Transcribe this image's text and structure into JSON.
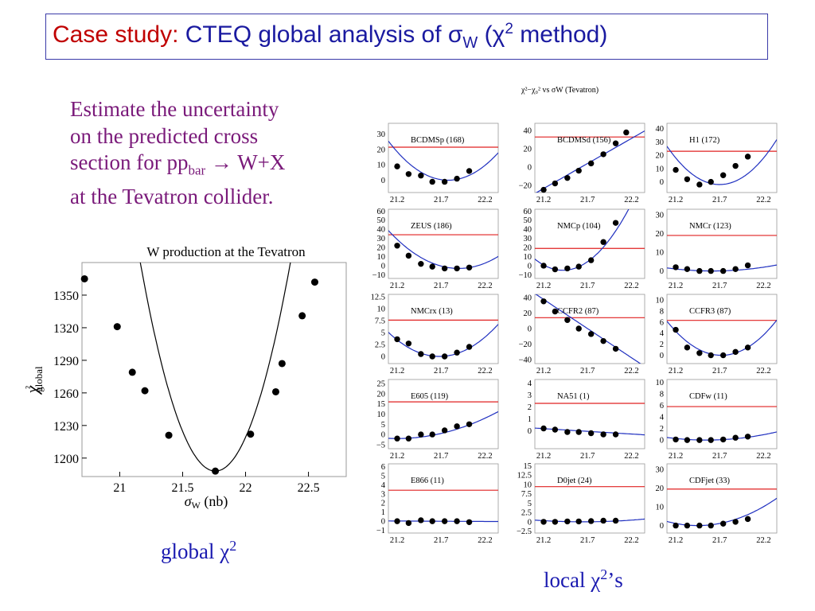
{
  "slide": {
    "title_part1": "Case study:",
    "title_part2": " CTEQ global analysis of ",
    "title_sigma": "σ",
    "title_sub": "W",
    "title_part3": " (",
    "title_chi": "χ",
    "title_sup": "2",
    "title_part4": " method)",
    "intro_line1": "Estimate the uncertainty",
    "intro_line2": "on the predicted cross",
    "intro_line3a": "section for pp",
    "intro_line3sub": "bar",
    "intro_line3b": " → W+X",
    "intro_line4": "at the Tevatron collider.",
    "caption_global": "global χ",
    "caption_global_sup": "2",
    "caption_local": "local χ",
    "caption_local_sup": "2",
    "caption_local_tail": "’s",
    "panels_title": "χ²−χ₀² vs σW (Tevatron)",
    "accent_title": "#c00000",
    "accent_text": "#7a1a7a",
    "accent_caption": "#1a1ab0"
  },
  "chart_data": [
    {
      "type": "scatter",
      "title": "W production at the Tevatron",
      "xlabel": "σW (nb)",
      "ylabel": "χ²global",
      "xlim": [
        20.7,
        22.8
      ],
      "ylim": [
        1183,
        1380
      ],
      "xticks": [
        21,
        21.5,
        22,
        22.5
      ],
      "xtick_labels": [
        "21",
        "21.5",
        "22",
        "22.5"
      ],
      "yticks": [
        1200,
        1230,
        1260,
        1290,
        1320,
        1350
      ],
      "ytick_labels": [
        "1200",
        "1230",
        "1260",
        "1290",
        "1320",
        "1350"
      ],
      "points": [
        [
          20.72,
          1365
        ],
        [
          20.98,
          1321
        ],
        [
          21.1,
          1279
        ],
        [
          21.2,
          1262
        ],
        [
          21.39,
          1221
        ],
        [
          21.76,
          1188
        ],
        [
          22.04,
          1222
        ],
        [
          22.24,
          1261
        ],
        [
          22.29,
          1287
        ],
        [
          22.45,
          1331
        ],
        [
          22.55,
          1362
        ]
      ],
      "fit_curve": {
        "type": "parabola",
        "x0": 21.76,
        "y0": 1188,
        "curvature": 540
      },
      "grid": false
    },
    {
      "type": "scatter",
      "panels": [
        {
          "label": "BCDMSp (168)",
          "ylim": [
            -8,
            37
          ],
          "yticks": [
            0,
            10,
            20,
            30
          ],
          "ytick_labels": [
            "0",
            "10",
            "20",
            "30"
          ],
          "ref_line": 21.5,
          "x0": 21.78,
          "y0": 0,
          "k": 55,
          "points": [
            [
              21.2,
              9
            ],
            [
              21.33,
              4
            ],
            [
              21.47,
              3
            ],
            [
              21.6,
              -1
            ],
            [
              21.74,
              -1
            ],
            [
              21.88,
              1
            ],
            [
              22.02,
              6
            ]
          ]
        },
        {
          "label": "BCDMSd (156)",
          "ylim": [
            -28,
            48
          ],
          "yticks": [
            -20,
            0,
            20,
            40
          ],
          "ytick_labels": [
            "−20",
            "0",
            "20",
            "40"
          ],
          "ref_line": 33,
          "linear": [
            21.72,
            5,
            55
          ],
          "points": [
            [
              21.2,
              -25
            ],
            [
              21.33,
              -18
            ],
            [
              21.47,
              -12
            ],
            [
              21.6,
              -4
            ],
            [
              21.74,
              4
            ],
            [
              21.88,
              14
            ],
            [
              22.02,
              26
            ],
            [
              22.14,
              38
            ]
          ]
        },
        {
          "label": "H1 (172)",
          "ylim": [
            -8,
            44
          ],
          "yticks": [
            0,
            10,
            20,
            30,
            40
          ],
          "ytick_labels": [
            "0",
            "10",
            "20",
            "30",
            "40"
          ],
          "ref_line": 23,
          "x0": 21.7,
          "y0": -2,
          "k": 80,
          "points": [
            [
              21.2,
              9
            ],
            [
              21.33,
              2
            ],
            [
              21.47,
              -2
            ],
            [
              21.6,
              0
            ],
            [
              21.74,
              5
            ],
            [
              21.88,
              12
            ],
            [
              22.02,
              19
            ]
          ]
        },
        {
          "label": "ZEUS (186)",
          "ylim": [
            -14,
            62
          ],
          "yticks": [
            -10,
            0,
            10,
            20,
            30,
            40,
            50,
            60
          ],
          "ytick_labels": [
            "−10",
            "0",
            "10",
            "20",
            "30",
            "40",
            "50",
            "60"
          ],
          "ref_line": 34,
          "x0": 21.9,
          "y0": -3,
          "k": 65,
          "points": [
            [
              21.2,
              22
            ],
            [
              21.33,
              11
            ],
            [
              21.47,
              2
            ],
            [
              21.6,
              -1
            ],
            [
              21.74,
              -3
            ],
            [
              21.88,
              -3
            ],
            [
              22.02,
              -2
            ]
          ]
        },
        {
          "label": "NMCp (104)",
          "ylim": [
            -14,
            62
          ],
          "yticks": [
            -10,
            0,
            10,
            20,
            30,
            40,
            50,
            60
          ],
          "ytick_labels": [
            "−10",
            "0",
            "10",
            "20",
            "30",
            "40",
            "50",
            "60"
          ],
          "ref_line": 19,
          "x0": 21.42,
          "y0": -5,
          "k": 120,
          "points": [
            [
              21.2,
              0
            ],
            [
              21.33,
              -4
            ],
            [
              21.47,
              -3
            ],
            [
              21.6,
              -1
            ],
            [
              21.74,
              6
            ],
            [
              21.88,
              26
            ],
            [
              22.02,
              47
            ]
          ]
        },
        {
          "label": "NMCr (123)",
          "ylim": [
            -4,
            33
          ],
          "yticks": [
            0,
            10,
            20,
            30
          ],
          "ytick_labels": [
            "0",
            "10",
            "20",
            "30"
          ],
          "ref_line": 19,
          "x0": 21.62,
          "y0": 0,
          "k": 6,
          "points": [
            [
              21.2,
              2
            ],
            [
              21.33,
              1
            ],
            [
              21.47,
              0
            ],
            [
              21.6,
              0
            ],
            [
              21.74,
              0
            ],
            [
              21.88,
              1
            ],
            [
              22.02,
              3
            ]
          ]
        },
        {
          "label": "NMCrx (13)",
          "ylim": [
            -1.5,
            13
          ],
          "yticks": [
            0,
            2.5,
            5,
            7.5,
            10,
            12.5
          ],
          "ytick_labels": [
            "0",
            "2.5",
            "5",
            "7.5",
            "10",
            "12.5"
          ],
          "ref_line": 7.6,
          "x0": 21.68,
          "y0": 0,
          "k": 15,
          "points": [
            [
              21.2,
              3.6
            ],
            [
              21.33,
              2.7
            ],
            [
              21.47,
              0.5
            ],
            [
              21.6,
              0
            ],
            [
              21.74,
              0
            ],
            [
              21.88,
              0.8
            ],
            [
              22.02,
              2
            ]
          ]
        },
        {
          "label": "CCFR2 (87)",
          "ylim": [
            -45,
            44
          ],
          "yticks": [
            -40,
            -20,
            0,
            20,
            40
          ],
          "ytick_labels": [
            "−40",
            "−20",
            "0",
            "20",
            "40"
          ],
          "ref_line": 14,
          "linear": [
            21.7,
            0,
            -75
          ],
          "points": [
            [
              21.2,
              35
            ],
            [
              21.33,
              22
            ],
            [
              21.47,
              11
            ],
            [
              21.6,
              0
            ],
            [
              21.74,
              -7
            ],
            [
              21.88,
              -16
            ],
            [
              22.02,
              -26
            ]
          ]
        },
        {
          "label": "CCFR3 (87)",
          "ylim": [
            -1.5,
            11
          ],
          "yticks": [
            0,
            2,
            4,
            6,
            8,
            10
          ],
          "ytick_labels": [
            "0",
            "2",
            "4",
            "6",
            "8",
            "10"
          ],
          "ref_line": 6.3,
          "x0": 21.72,
          "y0": 0,
          "k": 16,
          "points": [
            [
              21.2,
              4.6
            ],
            [
              21.33,
              1.4
            ],
            [
              21.47,
              0.4
            ],
            [
              21.6,
              0
            ],
            [
              21.74,
              0
            ],
            [
              21.88,
              0.6
            ],
            [
              22.02,
              1.4
            ]
          ]
        },
        {
          "label": "E605 (119)",
          "ylim": [
            -7,
            27
          ],
          "yticks": [
            -5,
            0,
            5,
            10,
            15,
            20,
            25
          ],
          "ytick_labels": [
            "−5",
            "0",
            "5",
            "10",
            "15",
            "20",
            "25"
          ],
          "ref_line": 16,
          "x0": 21.2,
          "y0": -2,
          "k": 10,
          "points": [
            [
              21.2,
              -2
            ],
            [
              21.33,
              -2
            ],
            [
              21.47,
              0
            ],
            [
              21.6,
              0
            ],
            [
              21.74,
              2
            ],
            [
              21.88,
              4
            ],
            [
              22.02,
              5
            ]
          ]
        },
        {
          "label": "NA51 (1)",
          "ylim": [
            -1.5,
            4.3
          ],
          "yticks": [
            0,
            1,
            2,
            3,
            4
          ],
          "ytick_labels": [
            "0",
            "1",
            "2",
            "3",
            "4"
          ],
          "ref_line": 2.3,
          "linear": [
            21.6,
            0,
            -0.45
          ],
          "points": [
            [
              21.2,
              0.2
            ],
            [
              21.33,
              0.1
            ],
            [
              21.47,
              -0.1
            ],
            [
              21.6,
              -0.1
            ],
            [
              21.74,
              -0.2
            ],
            [
              21.88,
              -0.3
            ],
            [
              22.02,
              -0.3
            ]
          ]
        },
        {
          "label": "CDFw (11)",
          "ylim": [
            -1.5,
            10.5
          ],
          "yticks": [
            0,
            2,
            4,
            6,
            8,
            10
          ],
          "ytick_labels": [
            "0",
            "2",
            "4",
            "6",
            "8",
            "10"
          ],
          "ref_line": 5.8,
          "x0": 21.55,
          "y0": 0,
          "k": 2.2,
          "points": [
            [
              21.2,
              0.1
            ],
            [
              21.33,
              0
            ],
            [
              21.47,
              0
            ],
            [
              21.6,
              0
            ],
            [
              21.74,
              0.1
            ],
            [
              21.88,
              0.4
            ],
            [
              22.02,
              0.6
            ]
          ]
        },
        {
          "label": "E866 (11)",
          "ylim": [
            -1.3,
            6.3
          ],
          "yticks": [
            -1,
            0,
            1,
            2,
            3,
            4,
            5,
            6
          ],
          "ytick_labels": [
            "−1",
            "0",
            "1",
            "2",
            "3",
            "4",
            "5",
            "6"
          ],
          "ref_line": 3.4,
          "linear": [
            21.6,
            0,
            -0.05
          ],
          "points": [
            [
              21.2,
              0
            ],
            [
              21.33,
              -0.2
            ],
            [
              21.47,
              0.1
            ],
            [
              21.6,
              0
            ],
            [
              21.74,
              0
            ],
            [
              21.88,
              0
            ],
            [
              22.02,
              -0.1
            ]
          ]
        },
        {
          "label": "D0jet (24)",
          "ylim": [
            -3,
            15.5
          ],
          "yticks": [
            -2.5,
            0,
            2.5,
            5,
            7.5,
            10,
            12.5,
            15
          ],
          "ytick_labels": [
            "−2.5",
            "0",
            "2.5",
            "5",
            "7.5",
            "10",
            "12.5",
            "15"
          ],
          "ref_line": 9.4,
          "x0": 21.65,
          "y0": 0,
          "k": 1.5,
          "points": [
            [
              21.2,
              0
            ],
            [
              21.33,
              0
            ],
            [
              21.47,
              0.1
            ],
            [
              21.6,
              0.1
            ],
            [
              21.74,
              0.2
            ],
            [
              21.88,
              0.3
            ],
            [
              22.02,
              0.3
            ]
          ]
        },
        {
          "label": "CDFjet (33)",
          "ylim": [
            -4,
            33
          ],
          "yticks": [
            0,
            10,
            20,
            30
          ],
          "ytick_labels": [
            "0",
            "10",
            "20",
            "30"
          ],
          "ref_line": 19.5,
          "x0": 21.45,
          "y0": 0,
          "k": 18,
          "points": [
            [
              21.2,
              0
            ],
            [
              21.33,
              0
            ],
            [
              21.47,
              0
            ],
            [
              21.6,
              0
            ],
            [
              21.74,
              1
            ],
            [
              21.88,
              2
            ],
            [
              22.02,
              3.5
            ]
          ]
        }
      ],
      "xlim": [
        21.1,
        22.35
      ],
      "xticks": [
        21.2,
        21.7,
        22.2
      ],
      "xtick_labels": [
        "21.2",
        "21.7",
        "22.2"
      ],
      "ref_line_color": "#e02020",
      "fit_line_color": "#2030c0"
    }
  ]
}
